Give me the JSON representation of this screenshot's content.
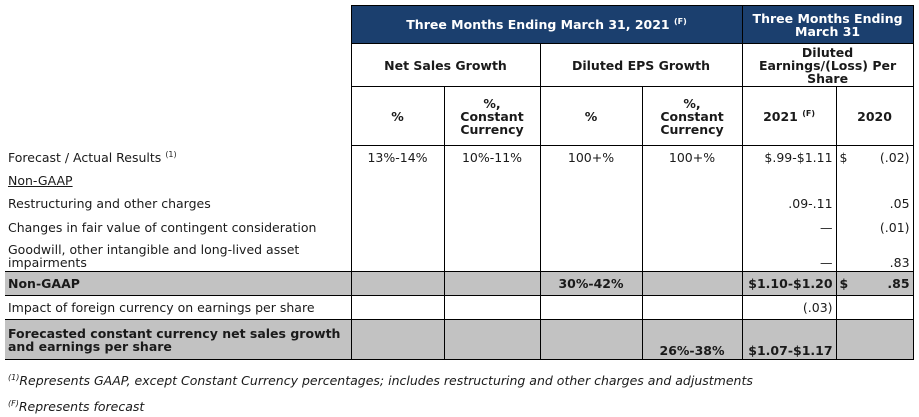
{
  "header": {
    "group_left": "Three Months Ending March 31, 2021",
    "group_left_note": "(F)",
    "group_right": "Three Months Ending March 31",
    "net_sales_growth": "Net Sales Growth",
    "diluted_eps_growth": "Diluted EPS Growth",
    "diluted_eps": "Diluted Earnings/(Loss) Per Share",
    "col_pct": "%",
    "col_cc_line1": "%,",
    "col_cc_line2": "Constant",
    "col_cc_line3": "Currency",
    "col_2021": "2021",
    "col_2021_note": "(F)",
    "col_2020": "2020"
  },
  "rows": {
    "forecast": {
      "label": "Forecast / Actual Results",
      "note": "(1)",
      "ns_pct": "13%-14%",
      "ns_cc": "10%-11%",
      "eps_pct": "100+%",
      "eps_cc": "100+%",
      "v2021": "$.99-$1.11",
      "v2020_sym": "$",
      "v2020": "(.02)"
    },
    "nongaap_heading": "Non-GAAP",
    "restructuring": {
      "label": "Restructuring and other charges",
      "v2021": ".09-.11",
      "v2020": ".05"
    },
    "contingent": {
      "label": "Changes in fair value of contingent consideration",
      "v2021": "—",
      "v2020": "(.01)"
    },
    "goodwill": {
      "label": "Goodwill, other intangible and long-lived asset impairments",
      "v2021": "—",
      "v2020": ".83"
    },
    "nongaap_total": {
      "label": "Non-GAAP",
      "eps_pct": "30%-42%",
      "v2021": "$1.10-$1.20",
      "v2020_sym": "$",
      "v2020": ".85"
    },
    "fx_impact": {
      "label": "Impact of foreign currency on earnings per share",
      "v2021": "(.03)"
    },
    "cc_forecast": {
      "label": "Forecasted constant currency net sales growth and earnings per share",
      "eps_cc": "26%-38%",
      "v2021": "$1.07-$1.17"
    }
  },
  "footnotes": {
    "note1_marker": "(1)",
    "note1_text": "Represents GAAP, except Constant Currency percentages; includes restructuring and other charges and adjustments",
    "noteF_marker": "(F)",
    "noteF_text": "Represents forecast"
  }
}
